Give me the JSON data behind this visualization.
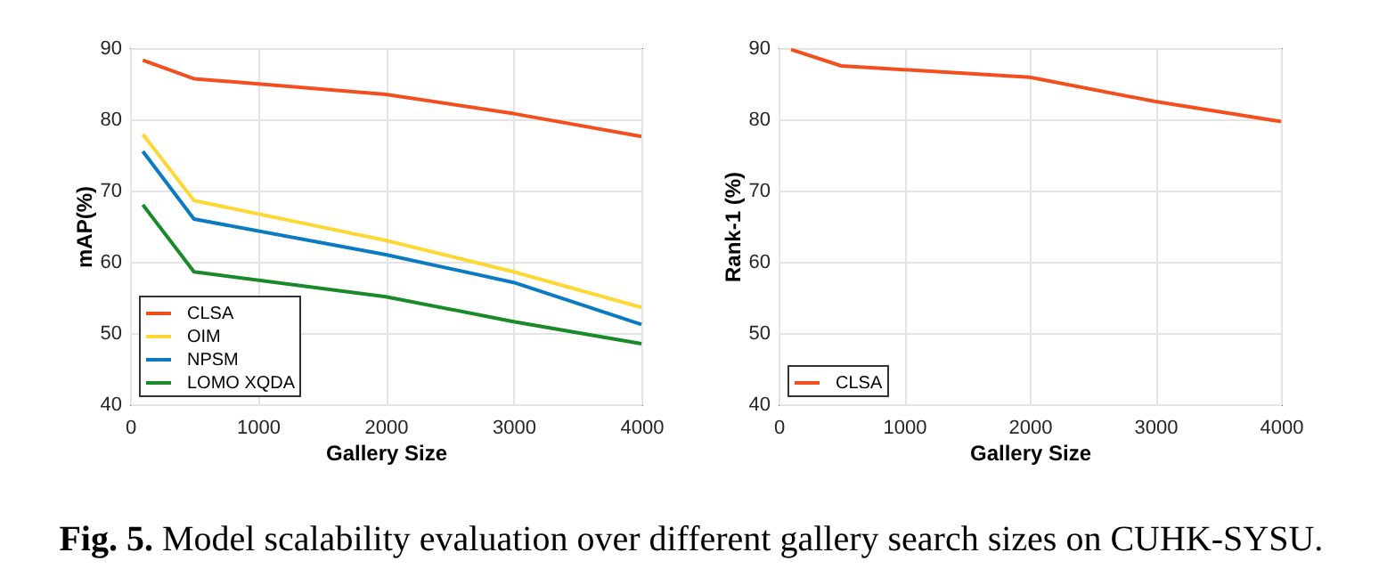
{
  "chart_data": [
    {
      "type": "line",
      "xlabel": "Gallery Size",
      "ylabel": "mAP(%)",
      "x": [
        100,
        500,
        2000,
        3000,
        4000
      ],
      "series": [
        {
          "name": "CLSA",
          "color": "#f24e1e",
          "values": [
            88.3,
            85.7,
            83.5,
            80.8,
            77.6
          ]
        },
        {
          "name": "OIM",
          "color": "#fdd835",
          "values": [
            77.9,
            68.6,
            63.0,
            58.6,
            53.6
          ]
        },
        {
          "name": "NPSM",
          "color": "#0b7bc1",
          "values": [
            75.5,
            66.0,
            61.0,
            57.1,
            51.2
          ]
        },
        {
          "name": "LOMO XQDA",
          "color": "#198a2a",
          "values": [
            68.0,
            58.6,
            55.1,
            51.6,
            48.5
          ]
        }
      ],
      "xlim": [
        0,
        4000
      ],
      "ylim": [
        40,
        90
      ],
      "xticks": [
        0,
        1000,
        2000,
        3000,
        4000
      ],
      "yticks": [
        40,
        50,
        60,
        70,
        80,
        90
      ],
      "grid": true,
      "legend": "bottom left",
      "annotations": [
        "Fig. 5.",
        "Model scalability evaluation over different gallery search sizes on CUHK-SYSU."
      ]
    },
    {
      "type": "line",
      "xlabel": "Gallery Size",
      "ylabel": "Rank-1 (%)",
      "x": [
        100,
        500,
        2000,
        3000,
        4000
      ],
      "series": [
        {
          "name": "CLSA",
          "color": "#f24e1e",
          "values": [
            89.8,
            87.5,
            85.9,
            82.5,
            79.7
          ]
        }
      ],
      "xlim": [
        0,
        4000
      ],
      "ylim": [
        40,
        90
      ],
      "xticks": [
        0,
        1000,
        2000,
        3000,
        4000
      ],
      "yticks": [
        40,
        50,
        60,
        70,
        80,
        90
      ],
      "grid": true,
      "legend": "bottom left"
    }
  ]
}
